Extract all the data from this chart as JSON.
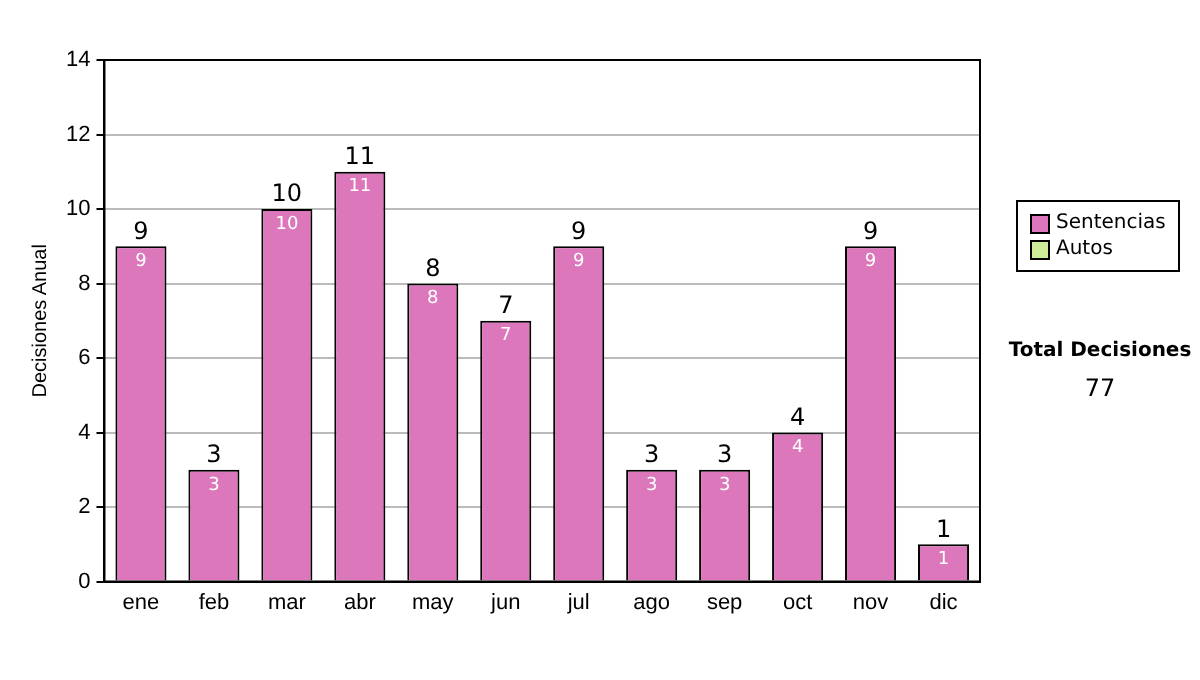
{
  "chart_data": {
    "type": "bar",
    "stacked": true,
    "ylabel": "Decisiones Anual",
    "categories": [
      "ene",
      "feb",
      "mar",
      "abr",
      "may",
      "jun",
      "jul",
      "ago",
      "sep",
      "oct",
      "nov",
      "dic"
    ],
    "series": [
      {
        "name": "Sentencias",
        "color": "#dd77bb",
        "values": [
          9,
          3,
          10,
          11,
          8,
          7,
          9,
          3,
          3,
          4,
          9,
          1
        ],
        "value_labels": [
          "9",
          "3",
          "10",
          "11",
          "8",
          "7",
          "9",
          "3",
          "3",
          "4",
          "9",
          "1"
        ]
      },
      {
        "name": "Autos",
        "color": "#ccee99",
        "values": [
          0,
          0,
          0,
          0,
          0,
          0,
          0,
          0,
          0,
          0,
          0,
          0
        ]
      }
    ],
    "totals": [
      "9",
      "3",
      "10",
      "11",
      "8",
      "7",
      "9",
      "3",
      "3",
      "4",
      "9",
      "1"
    ],
    "ylim": [
      0,
      14
    ],
    "yticks": [
      0,
      2,
      4,
      6,
      8,
      10,
      12,
      14
    ],
    "grid": "y",
    "legend": "right",
    "annotations": [
      "Total Decisiones",
      "77"
    ]
  }
}
